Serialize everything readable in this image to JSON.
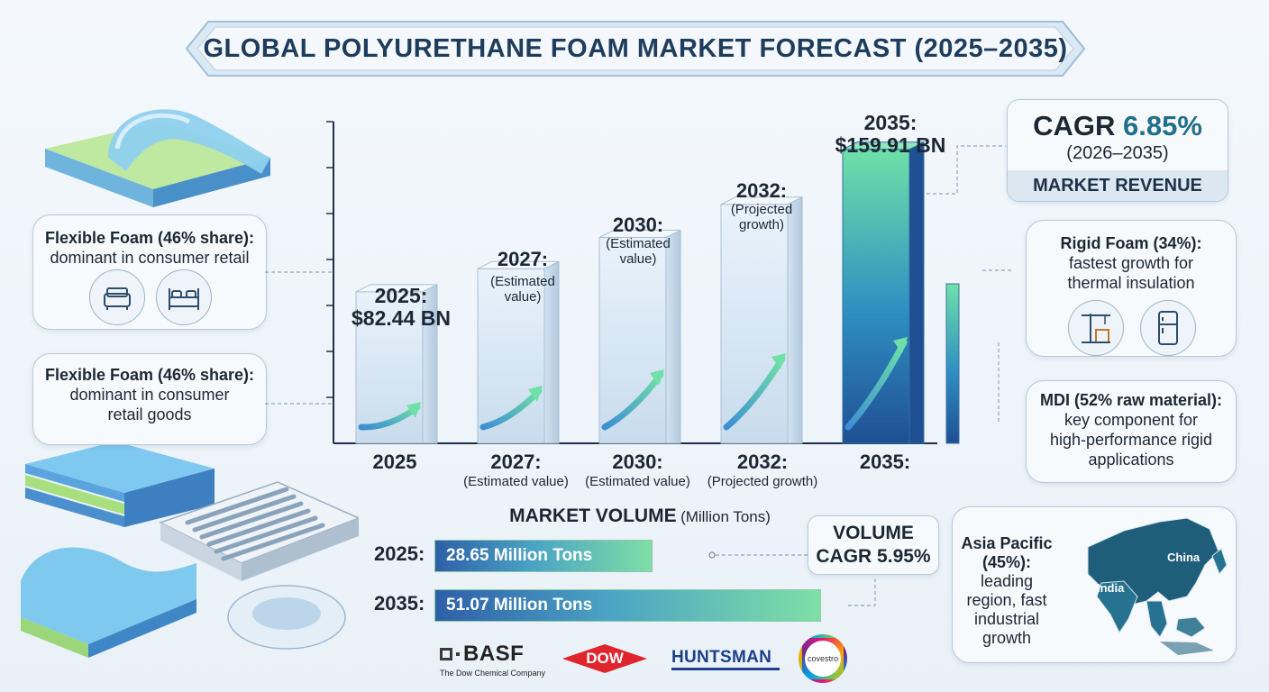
{
  "title": "GLOBAL POLYURETHANE FOAM MARKET FORECAST (2025–2035)",
  "chart_data": {
    "type": "bar",
    "categories": [
      "2025",
      "2027",
      "2030",
      "2032",
      "2035"
    ],
    "values": [
      82.44,
      95.0,
      112.0,
      130.0,
      159.91
    ],
    "value_labels": [
      {
        "year": "2025:",
        "value": "$82.44 BN",
        "note": ""
      },
      {
        "year": "2027:",
        "value": "",
        "note": "(Estimated value)"
      },
      {
        "year": "2030:",
        "value": "",
        "note": "(Estimated value)"
      },
      {
        "year": "2032:",
        "value": "",
        "note": "(Projected growth)"
      },
      {
        "year": "2035:",
        "value": "$159.91 BN",
        "note": ""
      }
    ],
    "x_labels": [
      {
        "year": "2025",
        "sub": ""
      },
      {
        "year": "2027:",
        "sub": "(Estimated value)"
      },
      {
        "year": "2030:",
        "sub": "(Estimated value)"
      },
      {
        "year": "2032:",
        "sub": "(Projected growth)"
      },
      {
        "year": "2035:",
        "sub": ""
      }
    ],
    "ylim": [
      0,
      175
    ],
    "volume": {
      "type": "bar",
      "orientation": "horizontal",
      "title": "MARKET VOLUME",
      "unit": "(Million Tons)",
      "categories": [
        "2025:",
        "2035:"
      ],
      "values": [
        28.65,
        51.07
      ],
      "labels": [
        "28.65 Million Tons",
        "51.07 Million Tons"
      ],
      "xlim": [
        0,
        55
      ]
    }
  },
  "cagr": {
    "label": "CAGR",
    "value": "6.85%",
    "period": "(2026–2035)",
    "caption": "MARKET REVENUE"
  },
  "volume_cagr": {
    "line1": "VOLUME",
    "line2": "CAGR 5.95%"
  },
  "callouts": {
    "flex1": {
      "bold": "Flexible Foam (46% share):",
      "text": "dominant in consumer retail"
    },
    "flex2": {
      "bold": "Flexible Foam (46% share):",
      "text1": "dominant in consumer",
      "text2": "retail goods"
    },
    "rigid": {
      "bold": "Rigid Foam (34%):",
      "text1": "fastest growth for",
      "text2": "thermal insulation"
    },
    "mdi": {
      "bold": "MDI (52% raw material):",
      "text1": "key component for",
      "text2": "high-performance rigid",
      "text3": "applications"
    },
    "asia": {
      "bold1": "Asia Pacific",
      "bold2": "(45%):",
      "l1": "leading",
      "l2": "region, fast",
      "l3": "industrial",
      "l4": "growth"
    }
  },
  "map_labels": {
    "china": "China",
    "india": "India"
  },
  "logos": {
    "basf": "BASF",
    "basf_sub": "The Dow Chemical Company",
    "dow": "DOW",
    "huntsman": "HUNTSMAN",
    "covestro": "covestro"
  },
  "colors": {
    "navy": "#1e3d5c",
    "teal": "#1f6f8b",
    "green": "#7fdfa6",
    "blue": "#2e5fa8"
  }
}
